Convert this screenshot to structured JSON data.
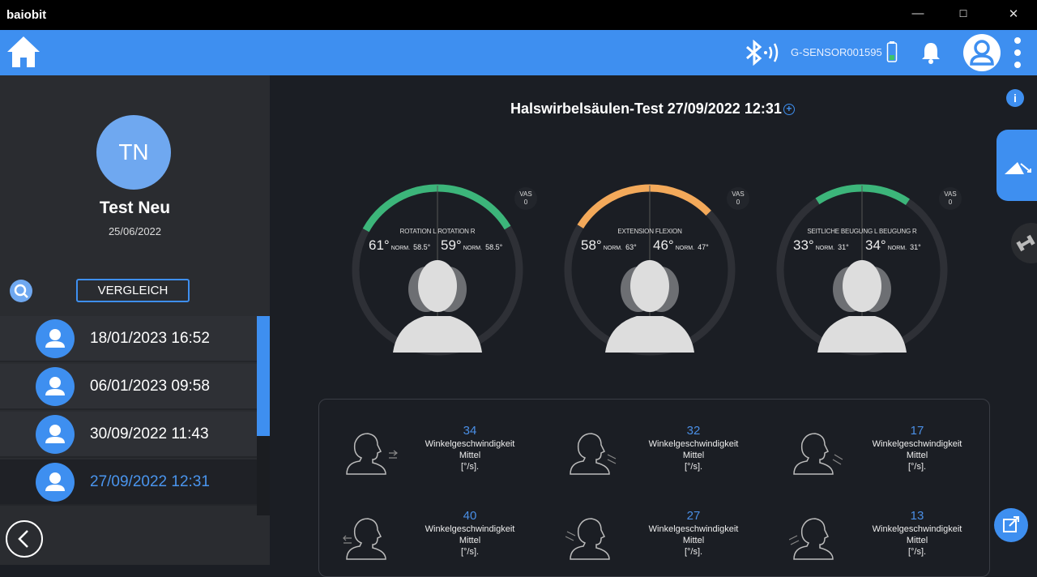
{
  "app": {
    "name": "baiobit",
    "minimize": "—",
    "maximize": "☐",
    "close": "✕"
  },
  "header": {
    "sensor": "G-SENSOR001595",
    "battery_color": "#3dc46a"
  },
  "patient": {
    "initials": "TN",
    "name": "Test Neu",
    "date": "25/06/2022"
  },
  "sidebar": {
    "compare_label": "VERGLEICH",
    "tests": [
      {
        "label": "18/01/2023 16:52"
      },
      {
        "label": "06/01/2023 09:58"
      },
      {
        "label": "30/09/2022 11:43"
      },
      {
        "label": "27/09/2022 12:31",
        "selected": true
      }
    ]
  },
  "main": {
    "title": "Halswirbelsäulen-Test 27/09/2022 12:31",
    "gauges": [
      {
        "left_label": "ROTATION L",
        "right_label": "ROTATION R",
        "left_value": "61°",
        "left_norm": "58.5°",
        "right_value": "59°",
        "right_norm": "58.5°",
        "left_deg": 61,
        "right_deg": 59,
        "color": "#3cb57a",
        "vas_label": "VAS",
        "vas_value": "0"
      },
      {
        "left_label": "EXTENSION",
        "right_label": "FLEXION",
        "left_value": "58°",
        "left_norm": "63°",
        "right_value": "46°",
        "right_norm": "47°",
        "left_deg": 58,
        "right_deg": 46,
        "color": "#f3a95a",
        "vas_label": "VAS",
        "vas_value": "0"
      },
      {
        "left_label": "SEITLICHE BEUGUNG L",
        "right_label": "BEUGUNG R",
        "left_value": "33°",
        "left_norm": "31°",
        "right_value": "34°",
        "right_norm": "31°",
        "left_deg": 33,
        "right_deg": 34,
        "color": "#3cb57a",
        "vas_label": "VAS",
        "vas_value": "0"
      }
    ],
    "norm_label": "NORM.",
    "stats": [
      {
        "value": "34",
        "l1": "Winkelgeschwindigkeit",
        "l2": "Mittel",
        "l3": "[°/s]."
      },
      {
        "value": "32",
        "l1": "Winkelgeschwindigkeit",
        "l2": "Mittel",
        "l3": "[°/s]."
      },
      {
        "value": "17",
        "l1": "Winkelgeschwindigkeit",
        "l2": "Mittel",
        "l3": "[°/s]."
      },
      {
        "value": "40",
        "l1": "Winkelgeschwindigkeit",
        "l2": "Mittel",
        "l3": "[°/s]."
      },
      {
        "value": "27",
        "l1": "Winkelgeschwindigkeit",
        "l2": "Mittel",
        "l3": "[°/s]."
      },
      {
        "value": "13",
        "l1": "Winkelgeschwindigkeit",
        "l2": "Mittel",
        "l3": "[°/s]."
      }
    ],
    "info": "i"
  }
}
